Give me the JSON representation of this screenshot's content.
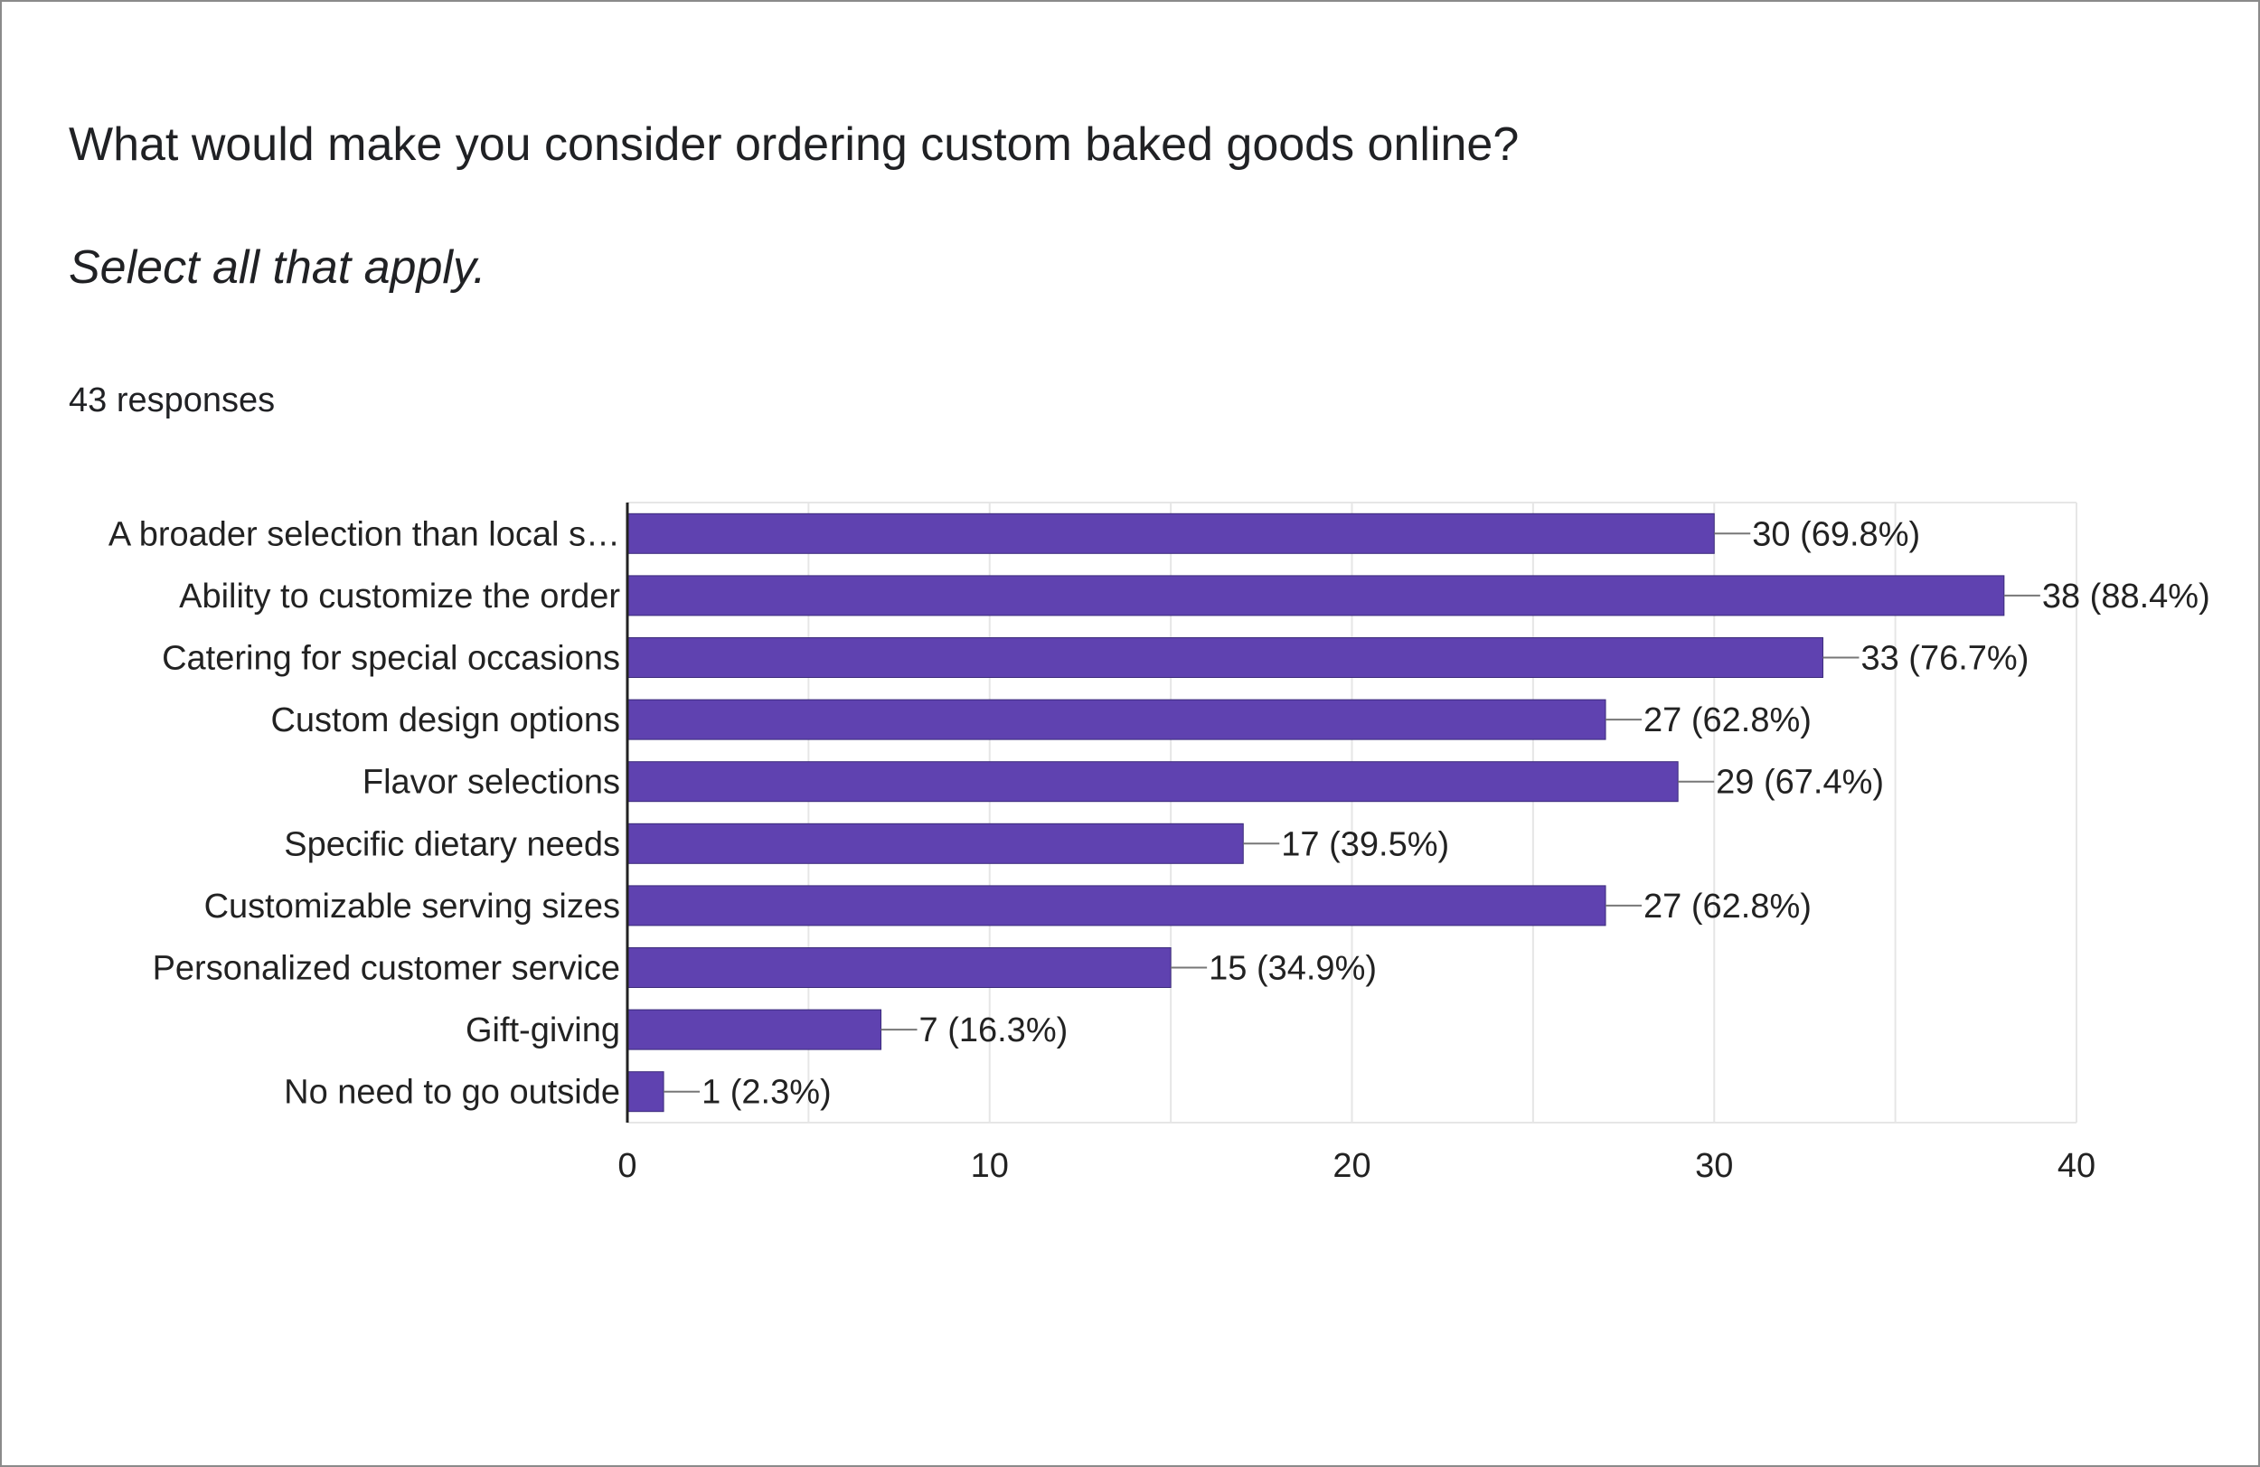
{
  "question": {
    "title": "What would make you consider ordering custom baked goods online?",
    "subtitle": "Select all that apply.",
    "responses": "43 responses"
  },
  "colors": {
    "bar": "#5f42b0",
    "grid": "#e6e6e6",
    "axis": "#222222",
    "leader": "#777777"
  },
  "chart_data": {
    "type": "bar",
    "orientation": "horizontal",
    "categories": [
      "A broader selection than local s…",
      "Ability to customize the order",
      "Catering for special occasions",
      "Custom design options",
      "Flavor selections",
      "Specific dietary needs",
      "Customizable serving sizes",
      "Personalized customer service",
      "Gift-giving",
      "No need to go outside"
    ],
    "values": [
      30,
      38,
      33,
      27,
      29,
      17,
      27,
      15,
      7,
      1
    ],
    "value_labels": [
      "30 (69.8%)",
      "38 (88.4%)",
      "33 (76.7%)",
      "27 (62.8%)",
      "29 (67.4%)",
      "17 (39.5%)",
      "27 (62.8%)",
      "15 (34.9%)",
      "7 (16.3%)",
      "1 (2.3%)"
    ],
    "xlim": [
      0,
      40
    ],
    "x_ticks": [
      0,
      10,
      20,
      30,
      40
    ],
    "grid": true,
    "title": "",
    "xlabel": "",
    "ylabel": ""
  }
}
